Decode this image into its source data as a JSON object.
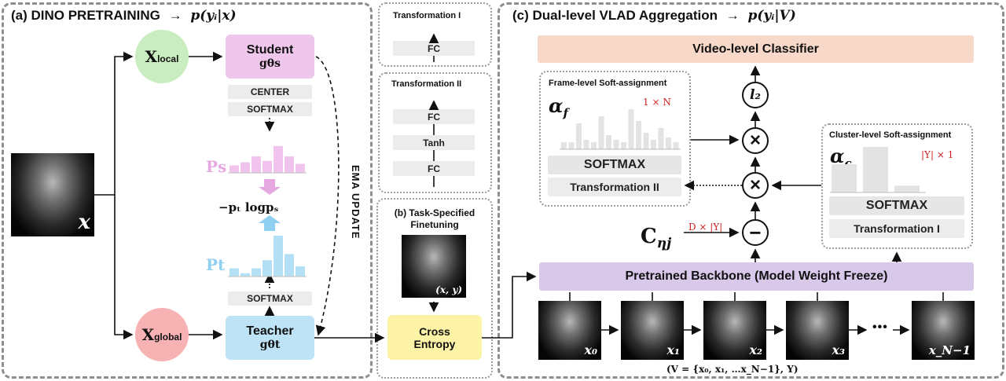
{
  "panel_a": {
    "title": "(a) DINO PRETRAINING",
    "formula": "p(yᵢ|x)",
    "input_label": "x",
    "x_local": {
      "main": "X",
      "sub": "local"
    },
    "x_global": {
      "main": "X",
      "sub": "global"
    },
    "student": {
      "title": "Student",
      "sym": "gθs"
    },
    "teacher": {
      "title": "Teacher",
      "sym": "gθt"
    },
    "center_label": "CENTER",
    "softmax_student": "SOFTMAX",
    "softmax_teacher": "SOFTMAX",
    "ps_label": "Ps",
    "pt_label": "Pt",
    "loss": "−pₜ logpₛ",
    "ema_update": "EMA UPDATE",
    "colors": {
      "local": "#c9ecc0",
      "global": "#f7b3b3",
      "student": "#f0c7ec",
      "teacher": "#bee3f6",
      "ps_bar": "#f0c4ec",
      "pt_bar": "#b4e0f6"
    }
  },
  "ps_hist": [
    0.25,
    0.35,
    0.55,
    0.4,
    0.9,
    0.55,
    0.3
  ],
  "pt_hist": [
    0.2,
    0.08,
    0.2,
    0.4,
    1.0,
    0.55,
    0.25
  ],
  "transform_1": {
    "title": "Transformation I",
    "fc": "FC"
  },
  "transform_2": {
    "title": "Transformation II",
    "fc_top": "FC",
    "tanh": "Tanh",
    "fc_bottom": "FC"
  },
  "panel_b": {
    "title_line1": "(b) Task-Specified",
    "title_line2": "Finetuning",
    "image_label": "(x, y)",
    "cross_entropy_line1": "Cross",
    "cross_entropy_line2": "Entropy"
  },
  "panel_c": {
    "title": "(c) Dual-level VLAD Aggregation",
    "formula": "p(yᵢ|V)",
    "classifier": "Video-level Classifier",
    "frame_assign": {
      "title": "Frame-level Soft-assignment",
      "symbol": "α",
      "sub": "f",
      "dim": "1 × N",
      "softmax": "SOFTMAX",
      "transform": "Transformation II"
    },
    "cluster_assign": {
      "title": "Cluster-level Soft-assignment",
      "symbol": "α",
      "sub": "c",
      "dim": "|Y| × 1",
      "softmax": "SOFTMAX",
      "transform": "Transformation I"
    },
    "l2": "l₂",
    "c_label": "C",
    "c_sub": "ηj",
    "c_dim": "D × |Y|",
    "backbone": "Pretrained Backbone (Model Weight Freeze)",
    "frames": [
      "x₀",
      "x₁",
      "x₂",
      "x₃",
      "x_N−1"
    ],
    "ellipsis": "•••",
    "video_def": "(V = {x₀, x₁, …x_N−1}, Y)",
    "colors": {
      "classifier": "#f8d8c8",
      "backbone": "#d8c9eb",
      "dim_text": "#d02020"
    }
  },
  "frame_hist": [
    0.15,
    0.15,
    0.55,
    0.2,
    0.15,
    0.7,
    0.3,
    0.2,
    0.15,
    0.85,
    0.6,
    0.35,
    0.2,
    0.45,
    0.25,
    0.15
  ],
  "cluster_hist": [
    0.62,
    1.0,
    0.15
  ]
}
